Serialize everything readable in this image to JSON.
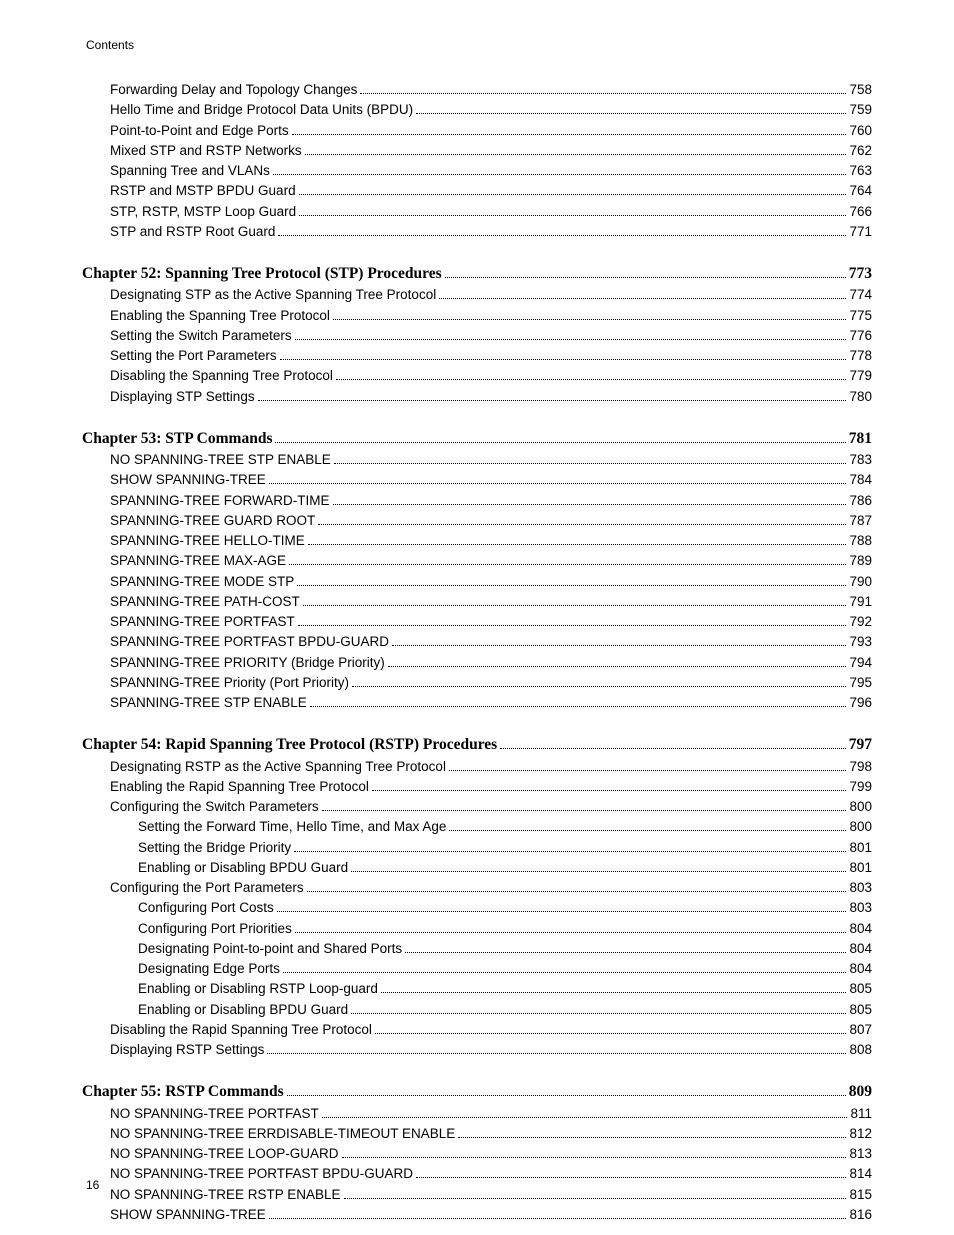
{
  "header_label": "Contents",
  "footer_page": "16",
  "sections": [
    {
      "entries": [
        {
          "level": 1,
          "label": "Forwarding Delay and Topology Changes",
          "page": "758"
        },
        {
          "level": 1,
          "label": "Hello Time and Bridge Protocol Data Units (BPDU)",
          "page": "759"
        },
        {
          "level": 1,
          "label": "Point-to-Point and Edge Ports",
          "page": "760"
        },
        {
          "level": 1,
          "label": "Mixed STP and RSTP Networks",
          "page": "762"
        },
        {
          "level": 1,
          "label": "Spanning Tree and VLANs",
          "page": "763"
        },
        {
          "level": 1,
          "label": "RSTP and MSTP BPDU Guard",
          "page": "764"
        },
        {
          "level": 1,
          "label": "STP, RSTP, MSTP Loop Guard",
          "page": "766"
        },
        {
          "level": 1,
          "label": "STP and RSTP Root Guard",
          "page": "771"
        }
      ]
    },
    {
      "chapter": {
        "label": "Chapter 52: Spanning Tree Protocol (STP) Procedures ",
        "page": "773"
      },
      "entries": [
        {
          "level": 1,
          "label": "Designating STP as the Active Spanning Tree Protocol",
          "page": "774"
        },
        {
          "level": 1,
          "label": "Enabling the Spanning Tree Protocol",
          "page": "775"
        },
        {
          "level": 1,
          "label": "Setting the Switch Parameters",
          "page": "776"
        },
        {
          "level": 1,
          "label": "Setting the Port Parameters",
          "page": "778"
        },
        {
          "level": 1,
          "label": "Disabling the Spanning Tree Protocol",
          "page": "779"
        },
        {
          "level": 1,
          "label": "Displaying STP Settings",
          "page": "780"
        }
      ]
    },
    {
      "chapter": {
        "label": "Chapter 53: STP Commands ",
        "page": "781"
      },
      "entries": [
        {
          "level": 1,
          "label": "NO SPANNING-TREE STP ENABLE",
          "page": "783"
        },
        {
          "level": 1,
          "label": "SHOW SPANNING-TREE",
          "page": "784"
        },
        {
          "level": 1,
          "label": "SPANNING-TREE FORWARD-TIME",
          "page": "786"
        },
        {
          "level": 1,
          "label": "SPANNING-TREE GUARD ROOT",
          "page": "787"
        },
        {
          "level": 1,
          "label": "SPANNING-TREE HELLO-TIME",
          "page": "788"
        },
        {
          "level": 1,
          "label": "SPANNING-TREE MAX-AGE",
          "page": "789"
        },
        {
          "level": 1,
          "label": "SPANNING-TREE MODE STP",
          "page": "790"
        },
        {
          "level": 1,
          "label": "SPANNING-TREE PATH-COST",
          "page": "791"
        },
        {
          "level": 1,
          "label": "SPANNING-TREE PORTFAST",
          "page": "792"
        },
        {
          "level": 1,
          "label": "SPANNING-TREE PORTFAST BPDU-GUARD",
          "page": "793"
        },
        {
          "level": 1,
          "label": "SPANNING-TREE PRIORITY (Bridge Priority)",
          "page": "794"
        },
        {
          "level": 1,
          "label": "SPANNING-TREE Priority (Port Priority)",
          "page": "795"
        },
        {
          "level": 1,
          "label": "SPANNING-TREE STP ENABLE",
          "page": "796"
        }
      ]
    },
    {
      "chapter": {
        "label": "Chapter 54: Rapid Spanning Tree Protocol (RSTP) Procedures ",
        "page": "797"
      },
      "entries": [
        {
          "level": 1,
          "label": "Designating RSTP as the Active Spanning Tree Protocol",
          "page": "798"
        },
        {
          "level": 1,
          "label": "Enabling the Rapid Spanning Tree Protocol",
          "page": "799"
        },
        {
          "level": 1,
          "label": "Configuring the Switch Parameters",
          "page": "800"
        },
        {
          "level": 2,
          "label": "Setting the Forward Time, Hello Time, and Max Age",
          "page": "800"
        },
        {
          "level": 2,
          "label": "Setting the Bridge Priority",
          "page": "801"
        },
        {
          "level": 2,
          "label": "Enabling or Disabling BPDU Guard",
          "page": "801"
        },
        {
          "level": 1,
          "label": "Configuring the Port Parameters",
          "page": "803"
        },
        {
          "level": 2,
          "label": "Configuring Port Costs",
          "page": "803"
        },
        {
          "level": 2,
          "label": "Configuring Port Priorities",
          "page": "804"
        },
        {
          "level": 2,
          "label": "Designating Point-to-point and Shared Ports",
          "page": "804"
        },
        {
          "level": 2,
          "label": "Designating Edge Ports",
          "page": "804"
        },
        {
          "level": 2,
          "label": "Enabling or Disabling RSTP Loop-guard",
          "page": "805"
        },
        {
          "level": 2,
          "label": "Enabling or Disabling BPDU Guard",
          "page": "805"
        },
        {
          "level": 1,
          "label": "Disabling the Rapid Spanning Tree Protocol",
          "page": "807"
        },
        {
          "level": 1,
          "label": "Displaying RSTP Settings",
          "page": "808"
        }
      ]
    },
    {
      "chapter": {
        "label": "Chapter 55: RSTP Commands ",
        "page": "809"
      },
      "entries": [
        {
          "level": 1,
          "label": "NO SPANNING-TREE PORTFAST",
          "page": "811"
        },
        {
          "level": 1,
          "label": "NO SPANNING-TREE ERRDISABLE-TIMEOUT ENABLE",
          "page": "812"
        },
        {
          "level": 1,
          "label": "NO SPANNING-TREE LOOP-GUARD",
          "page": "813"
        },
        {
          "level": 1,
          "label": "NO SPANNING-TREE PORTFAST BPDU-GUARD",
          "page": "814"
        },
        {
          "level": 1,
          "label": "NO SPANNING-TREE RSTP ENABLE",
          "page": "815"
        },
        {
          "level": 1,
          "label": "SHOW SPANNING-TREE",
          "page": "816"
        }
      ]
    }
  ]
}
